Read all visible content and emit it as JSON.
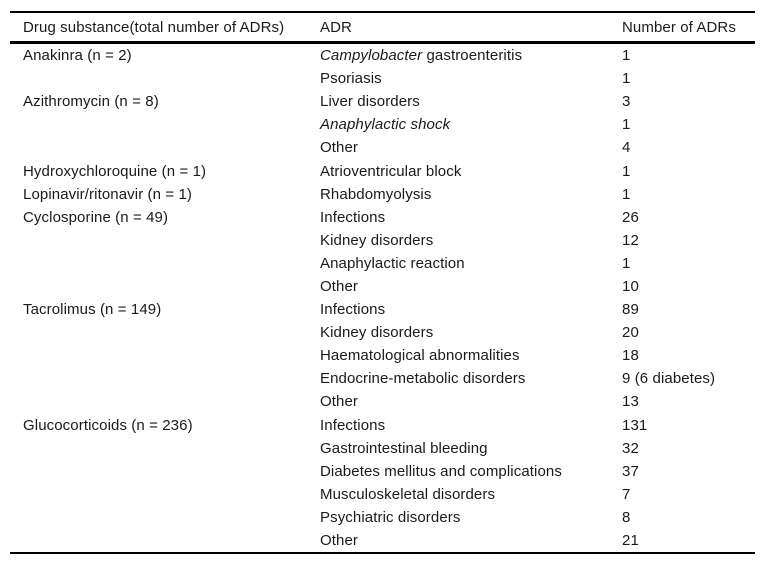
{
  "colors": {
    "background": "#ffffff",
    "text": "#1a1a1a",
    "rule": "#000000"
  },
  "table": {
    "columns": [
      "Drug substance(total number of ADRs)",
      "ADR",
      "Number of ADRs"
    ],
    "rows": [
      {
        "drug": "Anakinra (n = 2)",
        "adr": [
          {
            "t": "Campylobacter",
            "i": true
          },
          {
            "t": " gastroenteritis",
            "i": false
          }
        ],
        "count": "1"
      },
      {
        "drug": "",
        "adr": [
          {
            "t": "Psoriasis",
            "i": false
          }
        ],
        "count": "1"
      },
      {
        "drug": "Azithromycin (n = 8)",
        "adr": [
          {
            "t": "Liver disorders",
            "i": false
          }
        ],
        "count": "3"
      },
      {
        "drug": "",
        "adr": [
          {
            "t": "Anaphylactic shock",
            "i": true
          }
        ],
        "count": "1"
      },
      {
        "drug": "",
        "adr": [
          {
            "t": "Other",
            "i": false
          }
        ],
        "count": "4"
      },
      {
        "drug": "Hydroxychloroquine (n = 1)",
        "adr": [
          {
            "t": "Atrioventricular block",
            "i": false
          }
        ],
        "count": "1"
      },
      {
        "drug": "Lopinavir/ritonavir (n = 1)",
        "adr": [
          {
            "t": "Rhabdomyolysis",
            "i": false
          }
        ],
        "count": "1"
      },
      {
        "drug": "Cyclosporine (n = 49)",
        "adr": [
          {
            "t": "Infections",
            "i": false
          }
        ],
        "count": "26"
      },
      {
        "drug": "",
        "adr": [
          {
            "t": "Kidney disorders",
            "i": false
          }
        ],
        "count": "12"
      },
      {
        "drug": "",
        "adr": [
          {
            "t": "Anaphylactic reaction",
            "i": false
          }
        ],
        "count": "1"
      },
      {
        "drug": "",
        "adr": [
          {
            "t": "Other",
            "i": false
          }
        ],
        "count": "10"
      },
      {
        "drug": "Tacrolimus (n = 149)",
        "adr": [
          {
            "t": "Infections",
            "i": false
          }
        ],
        "count": "89"
      },
      {
        "drug": "",
        "adr": [
          {
            "t": "Kidney disorders",
            "i": false
          }
        ],
        "count": "20"
      },
      {
        "drug": "",
        "adr": [
          {
            "t": "Haematological abnormalities",
            "i": false
          }
        ],
        "count": "18"
      },
      {
        "drug": "",
        "adr": [
          {
            "t": "Endocrine-metabolic disorders",
            "i": false
          }
        ],
        "count": "9 (6 diabetes)"
      },
      {
        "drug": "",
        "adr": [
          {
            "t": "Other",
            "i": false
          }
        ],
        "count": "13"
      },
      {
        "drug": "Glucocorticoids (n = 236)",
        "adr": [
          {
            "t": "Infections",
            "i": false
          }
        ],
        "count": "131"
      },
      {
        "drug": "",
        "adr": [
          {
            "t": "Gastrointestinal bleeding",
            "i": false
          }
        ],
        "count": "32"
      },
      {
        "drug": "",
        "adr": [
          {
            "t": "Diabetes mellitus and complications",
            "i": false
          }
        ],
        "count": "37"
      },
      {
        "drug": "",
        "adr": [
          {
            "t": "Musculoskeletal disorders",
            "i": false
          }
        ],
        "count": "7"
      },
      {
        "drug": "",
        "adr": [
          {
            "t": "Psychiatric disorders",
            "i": false
          }
        ],
        "count": "8"
      },
      {
        "drug": "",
        "adr": [
          {
            "t": "Other",
            "i": false
          }
        ],
        "count": "21"
      }
    ]
  }
}
